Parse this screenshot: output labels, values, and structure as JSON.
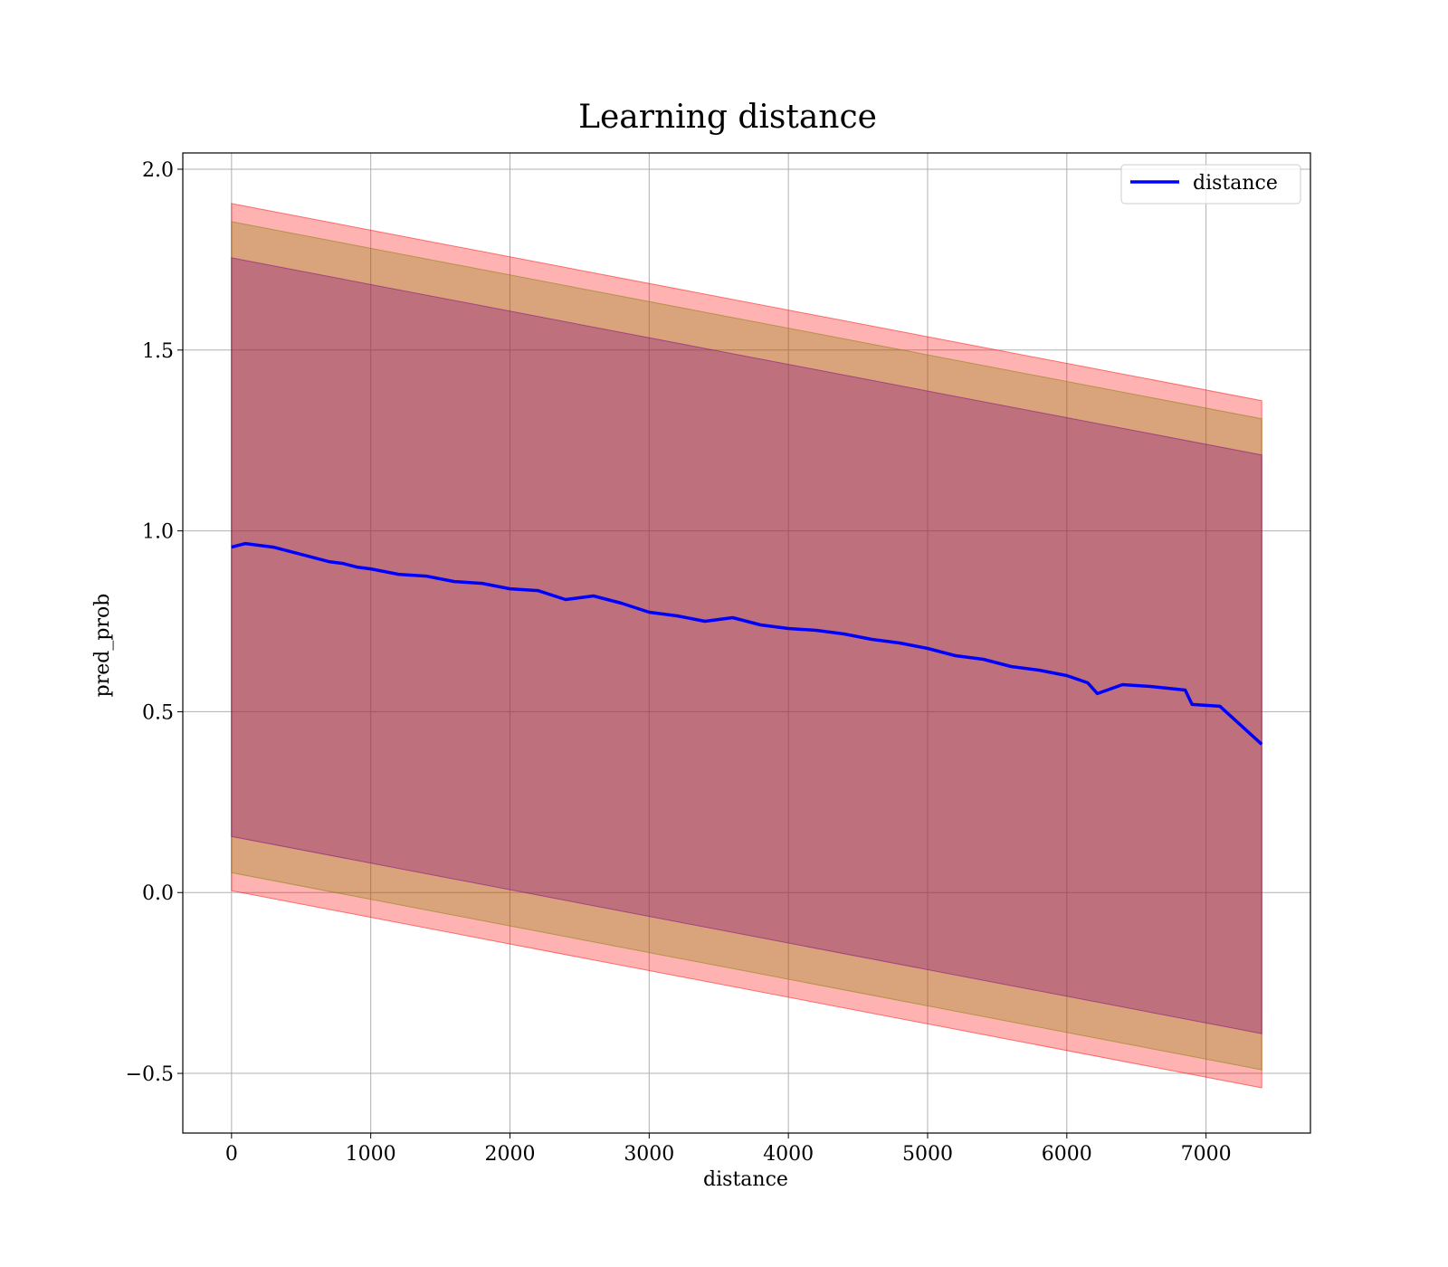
{
  "chart_data": {
    "type": "line",
    "title": "Learning distance",
    "xlabel": "distance",
    "ylabel": "pred_prob",
    "xlim": [
      -350,
      7750
    ],
    "ylim": [
      -0.665,
      2.045
    ],
    "x_ticks": [
      0,
      1000,
      2000,
      3000,
      4000,
      5000,
      6000,
      7000
    ],
    "x_tick_labels": [
      "0",
      "1000",
      "2000",
      "3000",
      "4000",
      "5000",
      "6000",
      "7000"
    ],
    "y_ticks": [
      -0.5,
      0.0,
      0.5,
      1.0,
      1.5,
      2.0
    ],
    "y_tick_labels": [
      "−0.5",
      "0.0",
      "0.5",
      "1.0",
      "1.5",
      "2.0"
    ],
    "grid": true,
    "legend": {
      "position": "top-right",
      "entries": [
        "distance"
      ]
    },
    "series": [
      {
        "name": "distance",
        "color": "#0000ff",
        "x": [
          0,
          100,
          200,
          300,
          400,
          500,
          600,
          700,
          800,
          900,
          1000,
          1200,
          1400,
          1600,
          1800,
          2000,
          2200,
          2400,
          2600,
          2800,
          3000,
          3200,
          3400,
          3600,
          3800,
          4000,
          4200,
          4400,
          4600,
          4800,
          5000,
          5200,
          5400,
          5600,
          5800,
          6000,
          6150,
          6220,
          6400,
          6600,
          6850,
          6900,
          7100,
          7400
        ],
        "y": [
          0.955,
          0.965,
          0.96,
          0.955,
          0.945,
          0.935,
          0.925,
          0.915,
          0.91,
          0.9,
          0.895,
          0.88,
          0.875,
          0.86,
          0.855,
          0.84,
          0.835,
          0.81,
          0.82,
          0.8,
          0.775,
          0.765,
          0.75,
          0.76,
          0.74,
          0.73,
          0.725,
          0.715,
          0.7,
          0.69,
          0.675,
          0.655,
          0.645,
          0.625,
          0.615,
          0.6,
          0.58,
          0.55,
          0.575,
          0.57,
          0.56,
          0.52,
          0.515,
          0.41
        ]
      }
    ],
    "bands": [
      {
        "color": "#ff0000",
        "opacity": 0.3,
        "x": [
          0,
          7400
        ],
        "upper": [
          1.905,
          1.36
        ],
        "lower": [
          0.005,
          -0.54
        ]
      },
      {
        "color": "#808000",
        "opacity": 0.3,
        "x": [
          0,
          7400
        ],
        "upper": [
          1.855,
          1.31
        ],
        "lower": [
          0.055,
          -0.49
        ]
      },
      {
        "color": "#800080",
        "opacity": 0.3,
        "x": [
          0,
          7400
        ],
        "upper": [
          1.755,
          1.21
        ],
        "lower": [
          0.155,
          -0.39
        ]
      }
    ]
  }
}
